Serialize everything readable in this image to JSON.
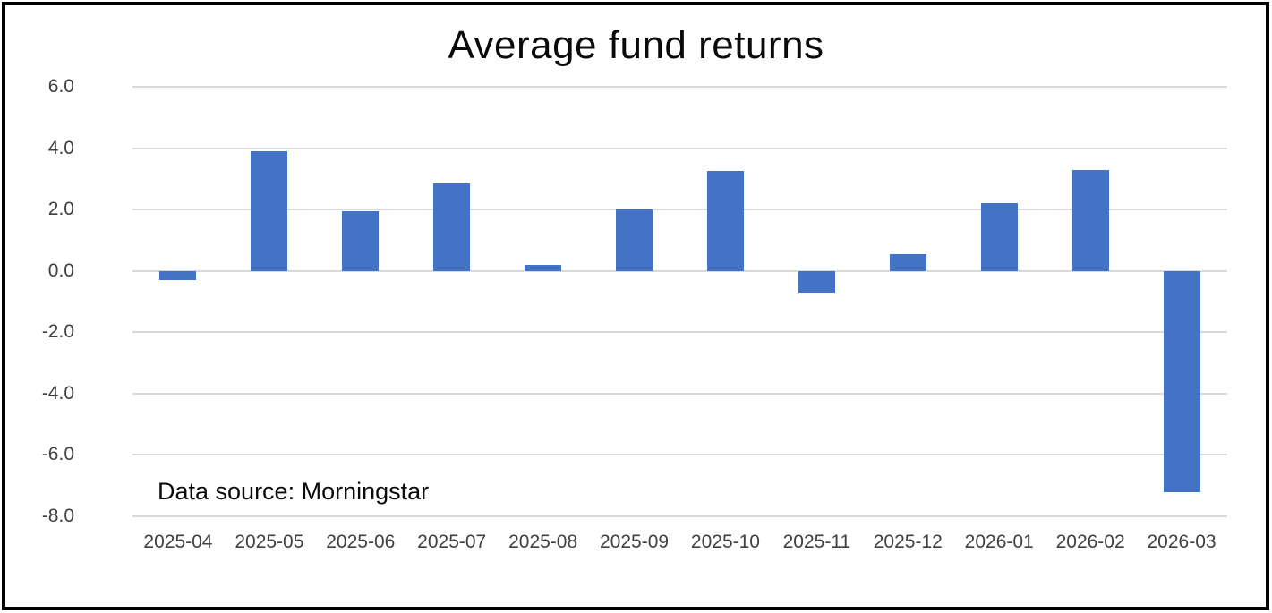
{
  "chart_data": {
    "type": "bar",
    "title": "Average fund returns",
    "categories": [
      "2025-04",
      "2025-05",
      "2025-06",
      "2025-07",
      "2025-08",
      "2025-09",
      "2025-10",
      "2025-11",
      "2025-12",
      "2026-01",
      "2026-02",
      "2026-03"
    ],
    "values": [
      -0.3,
      3.9,
      1.95,
      2.85,
      0.2,
      2.0,
      3.25,
      -0.7,
      0.55,
      2.2,
      3.3,
      -7.2
    ],
    "xlabel": "",
    "ylabel": "",
    "ylim": [
      -8.0,
      6.0
    ],
    "ytick_step": 2.0,
    "ytick_labels_top_to_bottom": [
      "6.0",
      "4.0",
      "2.0",
      "0.0",
      "-2.0",
      "-4.0",
      "-6.0",
      "-8.0"
    ],
    "grid": true,
    "legend": false,
    "annotation": "Data source: Morningstar",
    "colors": {
      "bar": "#4472c4",
      "gridline": "#d9d9d9",
      "axis_label": "#404040",
      "title": "#0a0a0a",
      "frame_border": "#000000",
      "background": "#ffffff"
    }
  }
}
